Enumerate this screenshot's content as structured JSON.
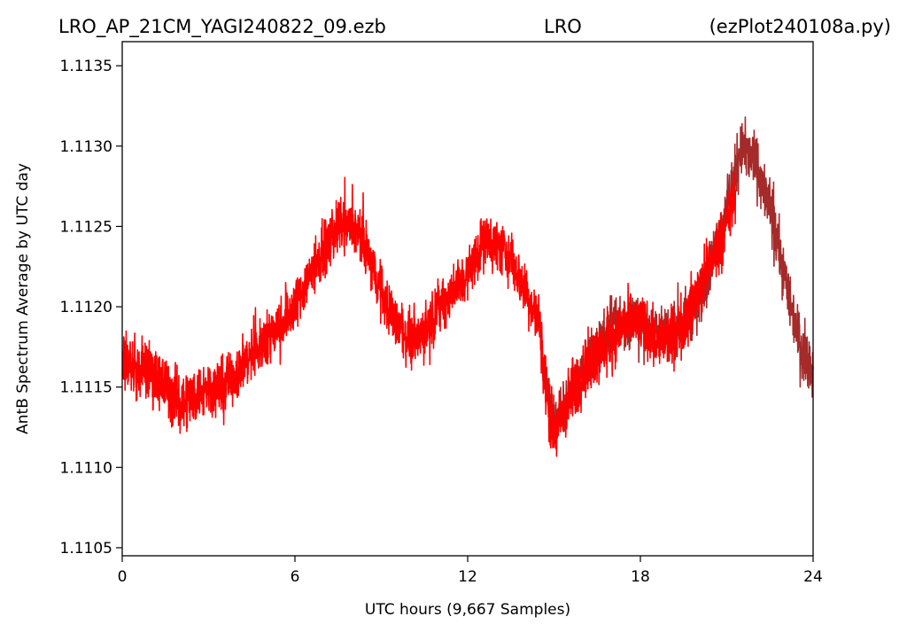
{
  "chart_data": {
    "type": "line",
    "title_left": "LRO_AP_21CM_YAGI240822_09.ezb",
    "title_center": "LRO",
    "title_right": "(ezPlot240108a.py)",
    "xlabel": "UTC hours  (9,667 Samples)",
    "ylabel": "AntB Spectrum Average by UTC day",
    "xlim": [
      0,
      24
    ],
    "ylim": [
      1.11045,
      1.11365
    ],
    "x_ticks": [
      0,
      6,
      12,
      18,
      24
    ],
    "x_tick_labels": [
      "0",
      "6",
      "12",
      "18",
      "24"
    ],
    "y_ticks": [
      1.1105,
      1.111,
      1.1115,
      1.112,
      1.1125,
      1.113,
      1.1135
    ],
    "y_tick_labels": [
      "1.1105",
      "1.1110",
      "1.1115",
      "1.1120",
      "1.1125",
      "1.1130",
      "1.1135"
    ],
    "grid": false,
    "legend": false,
    "series": [
      {
        "color": "#ff0000",
        "description": "primary day trace (center and envelope, noisy)",
        "x": [
          0,
          0.5,
          1,
          1.5,
          2,
          2.5,
          3,
          3.5,
          4,
          4.5,
          5,
          5.5,
          6,
          6.5,
          7,
          7.5,
          8,
          8.5,
          9,
          9.5,
          10,
          10.5,
          11,
          11.5,
          12,
          12.5,
          13,
          13.5,
          14,
          14.5,
          14.7,
          15,
          15.5,
          16,
          16.5,
          17,
          17.5,
          18,
          18.5,
          19,
          19.5,
          20,
          20.5,
          21,
          21.3
        ],
        "center": [
          1.1117,
          1.1116,
          1.1116,
          1.1115,
          1.1114,
          1.11145,
          1.1115,
          1.1115,
          1.1116,
          1.1117,
          1.1118,
          1.1119,
          1.112,
          1.1122,
          1.11235,
          1.1125,
          1.1125,
          1.11235,
          1.1121,
          1.1119,
          1.1118,
          1.11185,
          1.112,
          1.1121,
          1.1122,
          1.1124,
          1.1124,
          1.1123,
          1.1121,
          1.1119,
          1.1115,
          1.1112,
          1.1114,
          1.1116,
          1.1117,
          1.1118,
          1.1119,
          1.1119,
          1.1118,
          1.1118,
          1.1119,
          1.1121,
          1.1123,
          1.1125,
          1.1127
        ],
        "spread": [
          0.00025,
          0.00025,
          0.00028,
          0.00028,
          0.00028,
          0.00026,
          0.00025,
          0.00025,
          0.00025,
          0.00024,
          0.00024,
          0.00024,
          0.00024,
          0.00024,
          0.00024,
          0.00024,
          0.00024,
          0.00024,
          0.00024,
          0.00024,
          0.00024,
          0.00024,
          0.00024,
          0.00024,
          0.00024,
          0.00024,
          0.00024,
          0.00024,
          0.00024,
          0.00024,
          0.00028,
          0.0003,
          0.0003,
          0.00028,
          0.00028,
          0.00026,
          0.00026,
          0.00026,
          0.00026,
          0.00026,
          0.00026,
          0.00026,
          0.00026,
          0.00026,
          0.00026
        ]
      },
      {
        "color": "#a52a2a",
        "description": "older trace extending beyond the red data",
        "x": [
          14.6,
          15,
          16,
          17,
          18,
          19,
          20,
          20.5,
          21,
          21.5,
          22,
          22.5,
          23,
          23.5,
          24
        ],
        "center": [
          1.1116,
          1.1113,
          1.1116,
          1.1119,
          1.1119,
          1.1118,
          1.112,
          1.1123,
          1.1126,
          1.113,
          1.1129,
          1.1126,
          1.1122,
          1.1118,
          1.1116
        ],
        "spread": [
          0.0002,
          0.0002,
          0.00022,
          0.00022,
          0.00022,
          0.00022,
          0.00022,
          0.00022,
          0.00024,
          0.00026,
          0.00026,
          0.00026,
          0.00026,
          0.00026,
          0.00026
        ]
      }
    ]
  }
}
